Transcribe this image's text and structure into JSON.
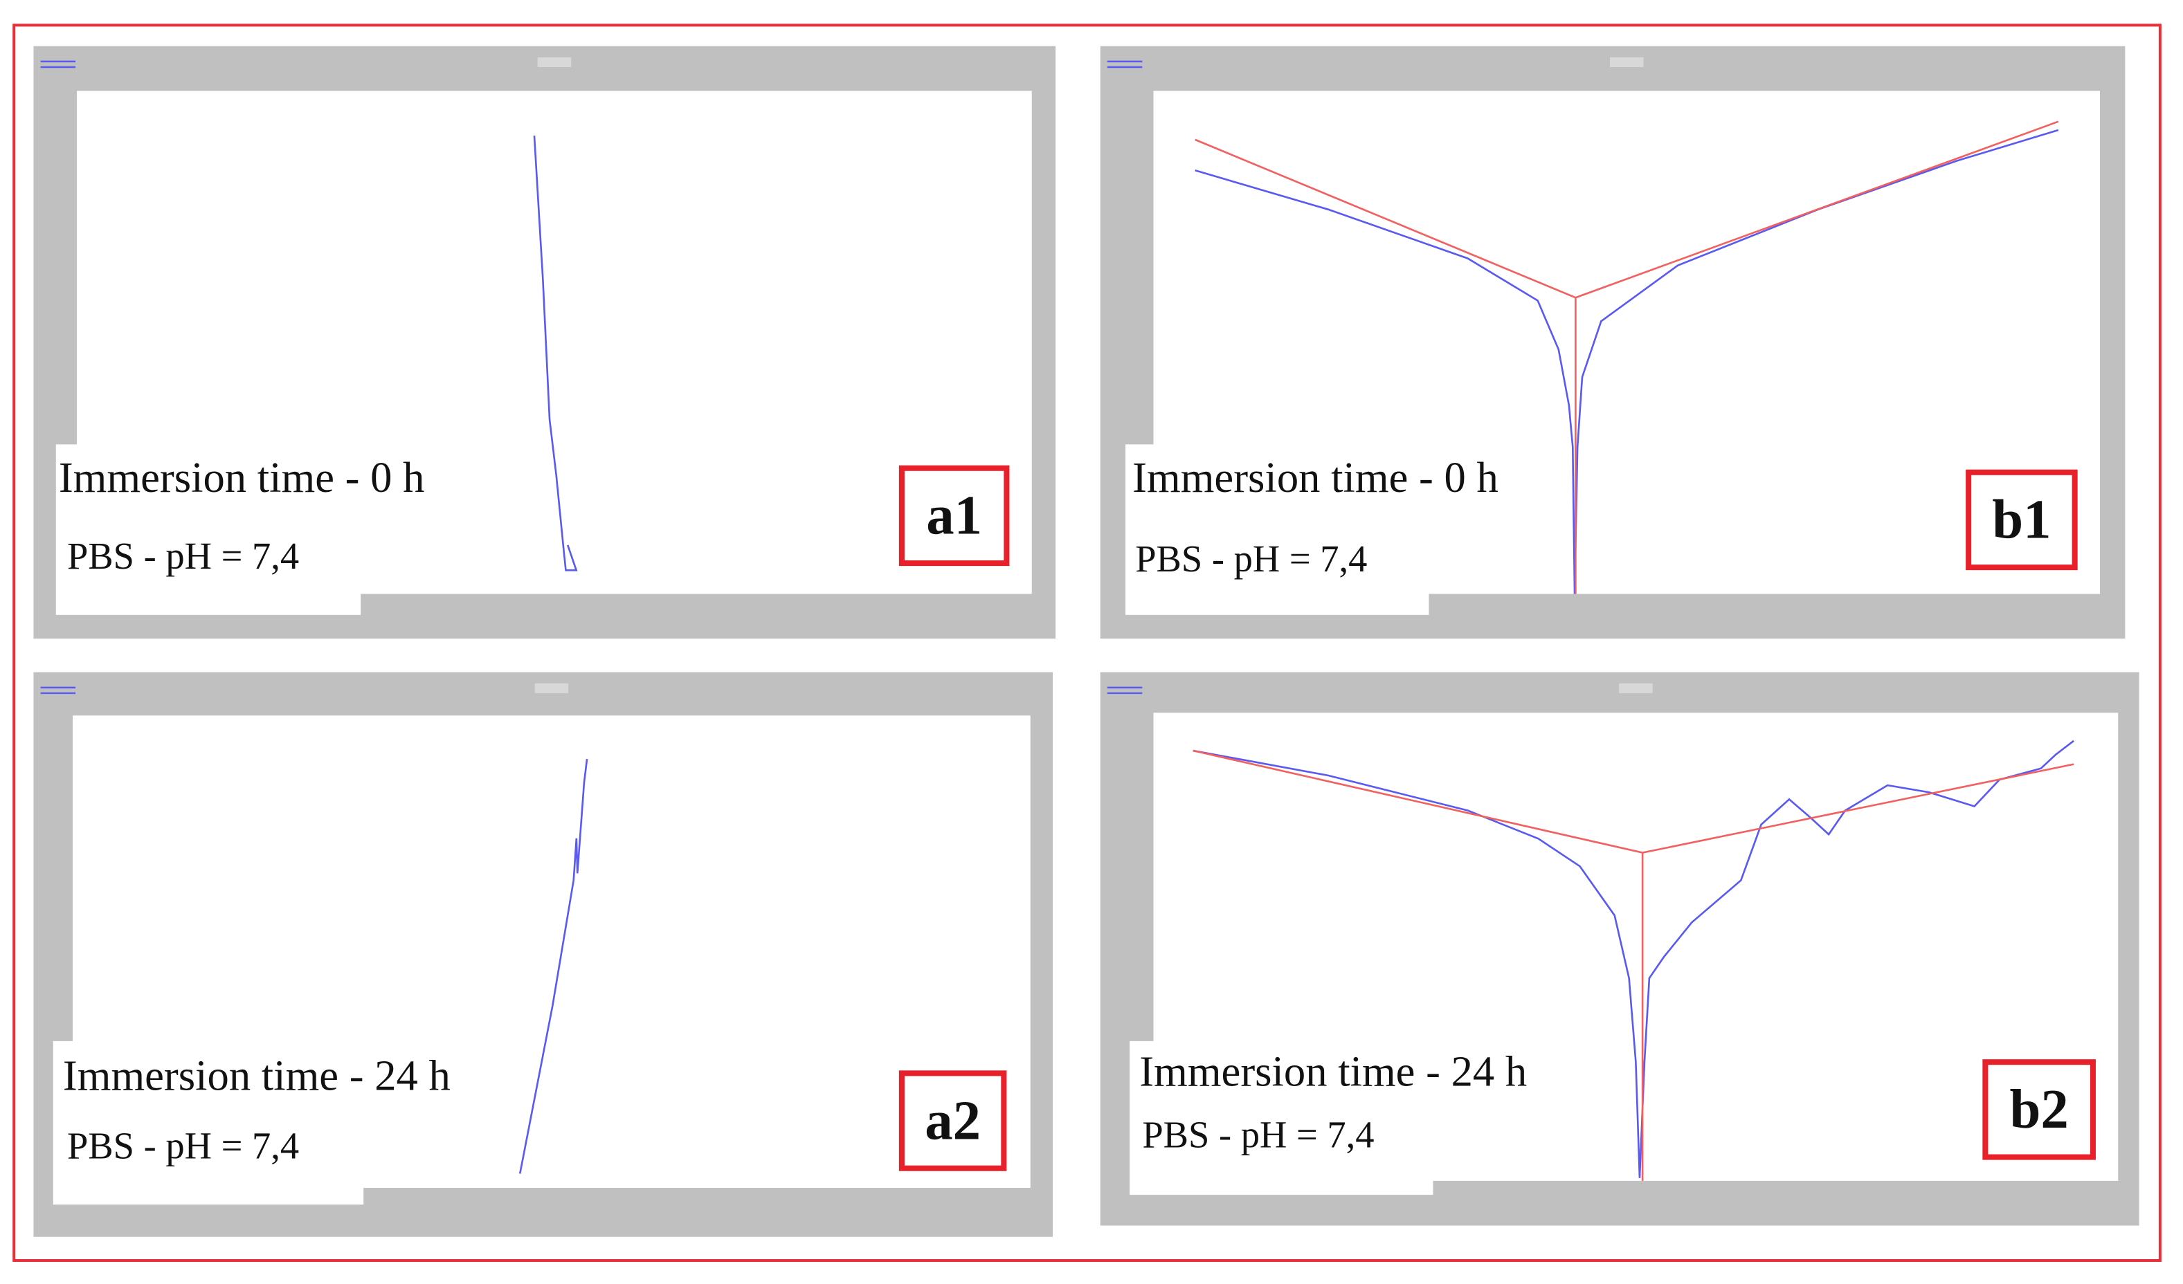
{
  "chart_data": [
    {
      "type": "line",
      "annotations": [
        "Immersion time - 0 h",
        "PBS - pH = 7,4"
      ],
      "label": "a1",
      "xlim": [
        0,
        100
      ],
      "ylim": [
        0,
        100
      ],
      "series": [
        {
          "color": "#5a5af2",
          "x": [
            47.9,
            48.8,
            49.5,
            50.2,
            51.0,
            51.2,
            52.3,
            51.4
          ],
          "values": [
            91.1,
            62.5,
            34.7,
            23.6,
            8.3,
            4.7,
            4.7,
            9.7
          ]
        }
      ]
    },
    {
      "type": "line",
      "annotations": [
        "Immersion time - 0 h",
        "PBS - pH = 7,4"
      ],
      "label": "b1",
      "xlim": [
        0,
        100
      ],
      "ylim": [
        0,
        100
      ],
      "series": [
        {
          "color": "#5a5af2",
          "x": [
            4.4,
            18.5,
            33.2,
            40.6,
            42.8,
            43.9,
            44.3,
            44.5,
            44.8,
            45.3,
            47.3,
            55.4,
            70.2,
            84.9,
            95.6
          ],
          "values": [
            84.2,
            76.4,
            66.7,
            58.3,
            48.6,
            37.5,
            29.2,
            0,
            29.2,
            43.1,
            54.2,
            65.3,
            76.4,
            86.1,
            92.2
          ]
        },
        {
          "color": "#f26060",
          "x": [
            4.4,
            44.6,
            95.6,
            null,
            44.6,
            44.6
          ],
          "values": [
            90.3,
            58.9,
            93.9,
            null,
            58.9,
            0
          ]
        }
      ]
    },
    {
      "type": "line",
      "annotations": [
        "Immersion time - 24 h",
        "PBS - pH = 7,4"
      ],
      "label": "a2",
      "xlim": [
        0,
        100
      ],
      "ylim": [
        0,
        100
      ],
      "series": [
        {
          "color": "#5a5af2",
          "x": [
            46.7,
            50.1,
            52.3,
            52.6,
            52.7,
            53.4,
            53.7
          ],
          "values": [
            3.0,
            38.5,
            65.1,
            74.0,
            66.6,
            85.8,
            90.8
          ]
        }
      ]
    },
    {
      "type": "line",
      "annotations": [
        "Immersion time - 24 h",
        "PBS - pH = 7,4"
      ],
      "label": "b2",
      "xlim": [
        0,
        100
      ],
      "ylim": [
        0,
        100
      ],
      "series": [
        {
          "color": "#5a5af2",
          "x": [
            4.1,
            18.1,
            32.6,
            39.9,
            44.2,
            47.8,
            49.3,
            50.0,
            50.4,
            50.9,
            51.4,
            52.9,
            55.8,
            60.9,
            63.0,
            65.9,
            68.1,
            70.0,
            71.7,
            76.1,
            80.4,
            85.1,
            87.7,
            92.0,
            93.5,
            95.4
          ],
          "values": [
            91.9,
            86.6,
            79.1,
            73.1,
            67.2,
            56.7,
            43.3,
            25.4,
            0.6,
            25.4,
            43.3,
            47.8,
            55.2,
            64.2,
            76.1,
            81.5,
            77.6,
            74.0,
            79.1,
            84.5,
            83.0,
            80.0,
            85.7,
            88.1,
            91.0,
            94.0
          ]
        },
        {
          "color": "#f26060",
          "x": [
            4.1,
            50.7,
            95.4,
            null,
            50.7,
            50.7
          ],
          "values": [
            91.9,
            70.1,
            89.0,
            null,
            70.1,
            0
          ]
        }
      ]
    }
  ]
}
